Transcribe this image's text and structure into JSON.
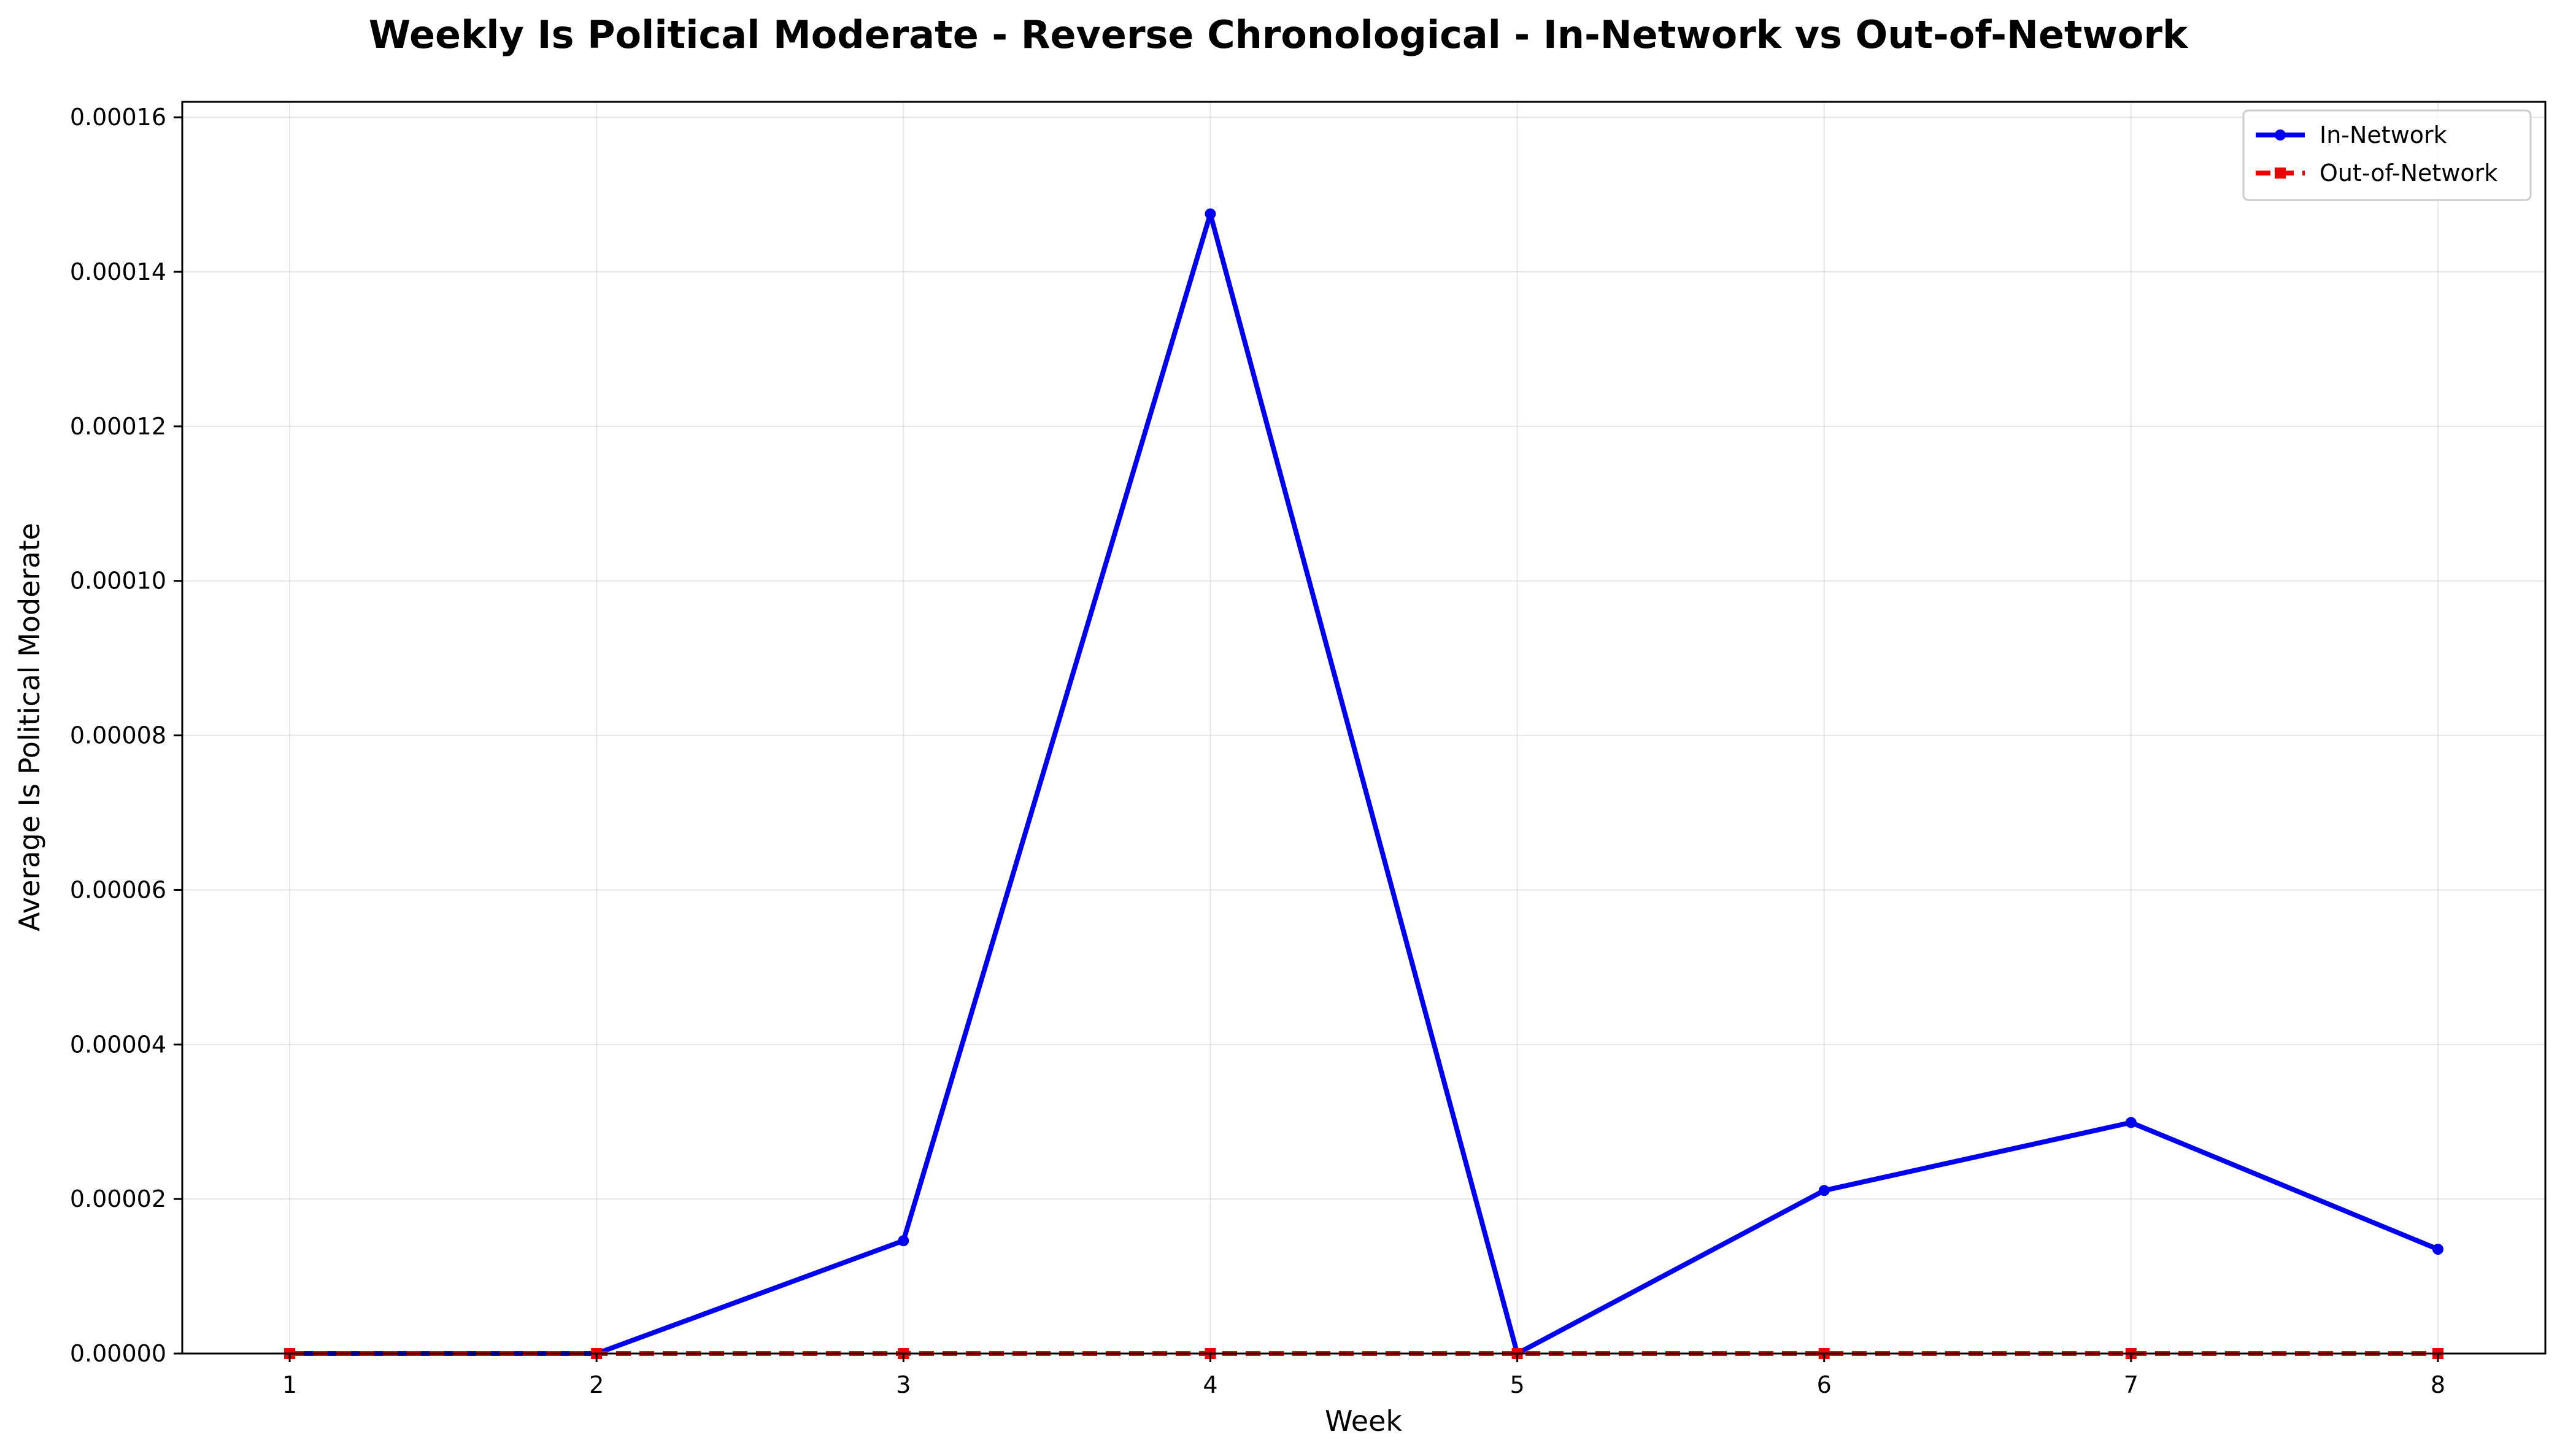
{
  "chart_data": {
    "type": "line",
    "title": "Weekly Is Political Moderate - Reverse Chronological - In-Network vs Out-of-Network",
    "xlabel": "Week",
    "ylabel": "Average Is Political Moderate",
    "x": [
      1,
      2,
      3,
      4,
      5,
      6,
      7,
      8
    ],
    "x_ticks": [
      "1",
      "2",
      "3",
      "4",
      "5",
      "6",
      "7",
      "8"
    ],
    "xlim": [
      0.65,
      8.35
    ],
    "ylim": [
      0,
      0.000162
    ],
    "y_ticks": [
      "0.00000",
      "0.00002",
      "0.00004",
      "0.00006",
      "0.00008",
      "0.00010",
      "0.00012",
      "0.00014",
      "0.00016"
    ],
    "grid": true,
    "legend_position": "top-right",
    "series": [
      {
        "name": "In-Network",
        "color": "#0000ee",
        "line_style": "solid",
        "marker": "circle",
        "values": [
          0.0,
          0.0,
          1.46e-05,
          0.0001475,
          0.0,
          2.11e-05,
          2.99e-05,
          1.35e-05
        ]
      },
      {
        "name": "Out-of-Network",
        "color": "#ee0000",
        "line_style": "dashed",
        "marker": "square",
        "values": [
          0,
          0,
          0,
          0,
          0,
          0,
          0,
          0
        ]
      }
    ]
  }
}
